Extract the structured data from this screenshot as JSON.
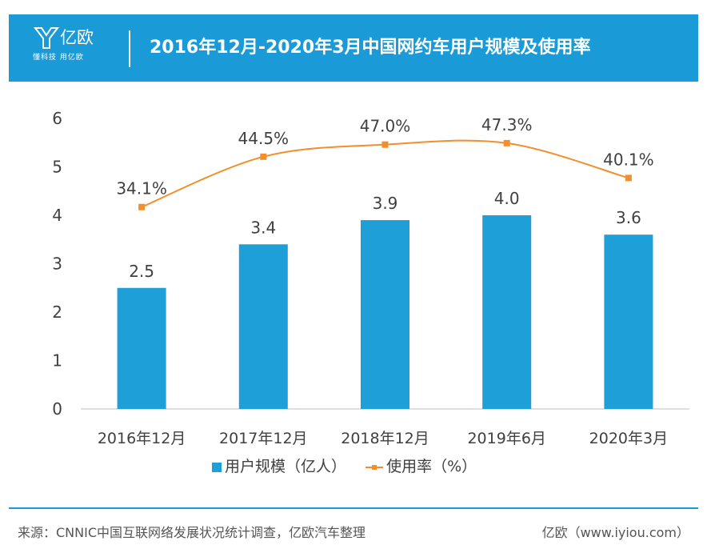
{
  "header": {
    "logo_name": "亿欧",
    "logo_slogan": "懂科技 用亿欧",
    "title": "2016年12月-2020年3月中国网约车用户规模及使用率",
    "background_color": "#1a9bd7"
  },
  "chart_data": {
    "type": "bar",
    "title": "2016年12月-2020年3月中国网约车用户规模及使用率",
    "categories": [
      "2016年12月",
      "2017年12月",
      "2018年12月",
      "2019年6月",
      "2020年3月"
    ],
    "series": [
      {
        "name": "用户规模（亿人）",
        "type": "bar",
        "values": [
          2.5,
          3.4,
          3.9,
          4.0,
          3.6
        ],
        "labels": [
          "2.5",
          "3.4",
          "3.9",
          "4.0",
          "3.6"
        ],
        "color": "#1f9fd8"
      },
      {
        "name": "使用率（%）",
        "type": "line",
        "values": [
          34.1,
          44.5,
          47.0,
          47.3,
          40.1
        ],
        "labels": [
          "34.1%",
          "44.5%",
          "47.0%",
          "47.3%",
          "40.1%"
        ],
        "color": "#f28e2b"
      }
    ],
    "ylim": [
      0,
      6
    ],
    "yticks": [
      "0",
      "1",
      "2",
      "3",
      "4",
      "5",
      "6"
    ],
    "legend_position": "bottom",
    "grid": false
  },
  "footer": {
    "source": "来源：CNNIC中国互联网络发展状况统计调查，亿欧汽车整理",
    "site": "亿欧（www.iyiou.com）"
  }
}
